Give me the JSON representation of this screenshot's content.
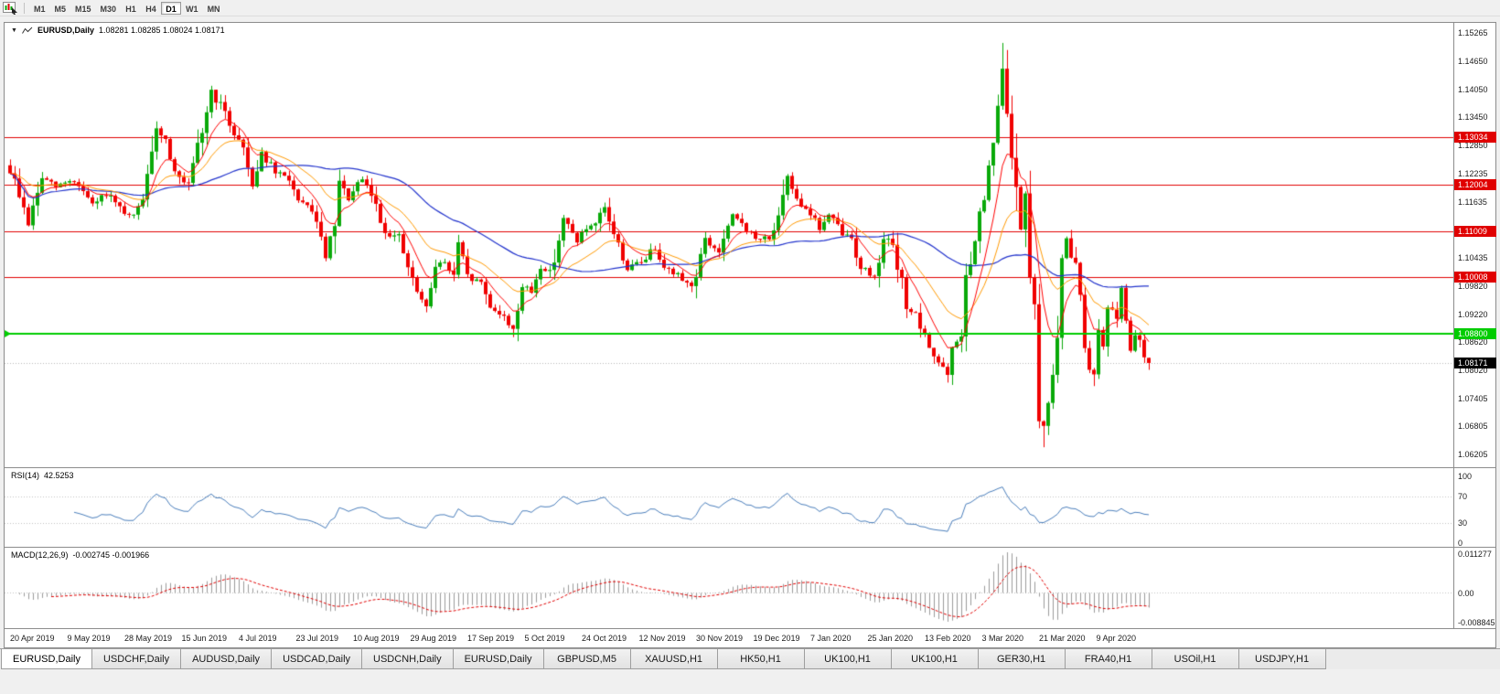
{
  "toolbar": {
    "periods": [
      "M1",
      "M5",
      "M15",
      "M30",
      "H1",
      "H4",
      "D1",
      "W1",
      "MN"
    ],
    "active_period": "D1"
  },
  "chart": {
    "title": "EURUSD,Daily",
    "ohlc_text": "1.08281 1.08285 1.08024 1.08171",
    "price_ticks": [
      "1.15265",
      "1.14650",
      "1.14050",
      "1.13450",
      "1.12850",
      "1.12235",
      "1.11635",
      "1.11035",
      "1.10435",
      "1.09820",
      "1.09220",
      "1.08620",
      "1.08020",
      "1.07405",
      "1.06805",
      "1.06205"
    ],
    "resistance_color": "#e00000",
    "resistance_lines": [
      {
        "label": "1.13034",
        "price": 1.13034
      },
      {
        "label": "1.12004",
        "price": 1.12004
      },
      {
        "label": "1.11009",
        "price": 1.11009
      },
      {
        "label": "1.10008",
        "price": 1.10008
      }
    ],
    "support_line": {
      "label": "1.08800",
      "price": 1.088,
      "color": "#00cc00"
    },
    "bid_line": {
      "label": "1.08171",
      "price": 1.08171,
      "color": "#000000"
    },
    "date_labels": [
      "20 Apr 2019",
      "9 May 2019",
      "28 May 2019",
      "15 Jun 2019",
      "4 Jul 2019",
      "23 Jul 2019",
      "10 Aug 2019",
      "29 Aug 2019",
      "17 Sep 2019",
      "5 Oct 2019",
      "24 Oct 2019",
      "12 Nov 2019",
      "30 Nov 2019",
      "19 Dec 2019",
      "7 Jan 2020",
      "25 Jan 2020",
      "13 Feb 2020",
      "3 Mar 2020",
      "21 Mar 2020",
      "9 Apr 2020"
    ]
  },
  "rsi": {
    "label": "RSI(14)",
    "value": "42.5253",
    "axis": [
      "100",
      "70",
      "30",
      "0"
    ],
    "levels": [
      70,
      30
    ],
    "line_color": "#4a7ebb"
  },
  "macd": {
    "label": "MACD(12,26,9)",
    "values": "-0.002745 -0.001966",
    "axis_top": "0.011277",
    "axis_zero": "0.00",
    "axis_bottom": "-0.008845",
    "histogram_color": "#9b9b9b",
    "signal_color": "#e00000"
  },
  "tabbar": {
    "tabs": [
      "EURUSD,Daily",
      "USDCHF,Daily",
      "AUDUSD,Daily",
      "USDCAD,Daily",
      "USDCNH,Daily",
      "EURUSD,Daily",
      "GBPUSD,M5",
      "XAUUSD,H1",
      "HK50,H1",
      "UK100,H1",
      "UK100,H1",
      "GER30,H1",
      "FRA40,H1",
      "USOil,H1",
      "USDJPY,H1"
    ],
    "active_index": 0
  },
  "chart_data": {
    "type": "candlestick",
    "symbol": "EURUSD",
    "timeframe": "Daily",
    "bar_count": 250,
    "price_max": 1.15481,
    "price_min": 1.0593,
    "noise_seed": 9,
    "up_color": "#09a909",
    "down_color": "#f00000",
    "ma_fast": {
      "period": 8,
      "color": "#ff0000"
    },
    "ma_mid": {
      "period": 20,
      "color": "#ff9900"
    },
    "ma_slow": {
      "period": 45,
      "color": "#2233cc"
    },
    "last_bar_ohlc": [
      1.08281,
      1.08285,
      1.08024,
      1.08171
    ],
    "rsi_value": 42.5253,
    "macd_main": -0.002745,
    "macd_signal": -0.001966,
    "close_waypoints": [
      [
        0,
        1.123
      ],
      [
        2,
        1.118
      ],
      [
        4,
        1.1115
      ],
      [
        7,
        1.1215
      ],
      [
        10,
        1.1195
      ],
      [
        13,
        1.121
      ],
      [
        15,
        1.12
      ],
      [
        18,
        1.1155
      ],
      [
        21,
        1.118
      ],
      [
        25,
        1.1135
      ],
      [
        27,
        1.113
      ],
      [
        29,
        1.1175
      ],
      [
        31,
        1.125
      ],
      [
        32,
        1.133
      ],
      [
        34,
        1.1295
      ],
      [
        37,
        1.121
      ],
      [
        39,
        1.1195
      ],
      [
        41,
        1.1275
      ],
      [
        44,
        1.14
      ],
      [
        46,
        1.137
      ],
      [
        48,
        1.133
      ],
      [
        51,
        1.128
      ],
      [
        53,
        1.12
      ],
      [
        55,
        1.127
      ],
      [
        58,
        1.1225
      ],
      [
        61,
        1.1215
      ],
      [
        63,
        1.116
      ],
      [
        66,
        1.115
      ],
      [
        68,
        1.1075
      ],
      [
        69,
        1.1045
      ],
      [
        71,
        1.1105
      ],
      [
        72,
        1.12
      ],
      [
        74,
        1.117
      ],
      [
        77,
        1.121
      ],
      [
        79,
        1.118
      ],
      [
        82,
        1.11
      ],
      [
        85,
        1.1085
      ],
      [
        88,
        1.099
      ],
      [
        91,
        1.093
      ],
      [
        93,
        1.1035
      ],
      [
        95,
        1.103
      ],
      [
        97,
        1.1005
      ],
      [
        98,
        1.107
      ],
      [
        100,
        1.1
      ],
      [
        103,
        1.099
      ],
      [
        105,
        1.094
      ],
      [
        107,
        1.0925
      ],
      [
        109,
        1.09
      ],
      [
        110,
        1.0895
      ],
      [
        112,
        1.098
      ],
      [
        114,
        1.097
      ],
      [
        116,
        1.1025
      ],
      [
        118,
        1.101
      ],
      [
        121,
        1.1125
      ],
      [
        124,
        1.108
      ],
      [
        126,
        1.1105
      ],
      [
        128,
        1.111
      ],
      [
        130,
        1.115
      ],
      [
        133,
        1.107
      ],
      [
        135,
        1.102
      ],
      [
        138,
        1.1035
      ],
      [
        141,
        1.1065
      ],
      [
        144,
        1.1015
      ],
      [
        147,
        1.1
      ],
      [
        149,
        1.098
      ],
      [
        152,
        1.108
      ],
      [
        155,
        1.1055
      ],
      [
        158,
        1.113
      ],
      [
        160,
        1.112
      ],
      [
        163,
        1.108
      ],
      [
        166,
        1.109
      ],
      [
        168,
        1.112
      ],
      [
        170,
        1.1212
      ],
      [
        173,
        1.116
      ],
      [
        175,
        1.114
      ],
      [
        177,
        1.1105
      ],
      [
        179,
        1.1135
      ],
      [
        182,
        1.1095
      ],
      [
        184,
        1.1085
      ],
      [
        186,
        1.1025
      ],
      [
        189,
        1.1
      ],
      [
        191,
        1.1093
      ],
      [
        193,
        1.106
      ],
      [
        196,
        1.0945
      ],
      [
        198,
        1.0915
      ],
      [
        200,
        1.087
      ],
      [
        202,
        1.0835
      ],
      [
        205,
        1.079
      ],
      [
        206,
        1.0845
      ],
      [
        208,
        1.088
      ],
      [
        209,
        1.1
      ],
      [
        210,
        1.1026
      ],
      [
        212,
        1.1135
      ],
      [
        213,
        1.117
      ],
      [
        214,
        1.1235
      ],
      [
        215,
        1.1285
      ],
      [
        217,
        1.145
      ],
      [
        218,
        1.134
      ],
      [
        219,
        1.127
      ],
      [
        220,
        1.1184
      ],
      [
        221,
        1.1105
      ],
      [
        222,
        1.118
      ],
      [
        223,
        1.0995
      ],
      [
        224,
        1.0935
      ],
      [
        225,
        1.069
      ],
      [
        226,
        1.0685
      ],
      [
        227,
        1.0725
      ],
      [
        228,
        1.079
      ],
      [
        229,
        1.088
      ],
      [
        230,
        1.103
      ],
      [
        231,
        1.1085
      ],
      [
        232,
        1.1048
      ],
      [
        233,
        1.1033
      ],
      [
        234,
        1.0965
      ],
      [
        235,
        1.0857
      ],
      [
        236,
        1.0808
      ],
      [
        237,
        1.0791
      ],
      [
        238,
        1.089
      ],
      [
        239,
        1.0857
      ],
      [
        240,
        1.093
      ],
      [
        241,
        1.0935
      ],
      [
        242,
        1.0912
      ],
      [
        243,
        1.098
      ],
      [
        244,
        1.0914
      ],
      [
        245,
        1.0839
      ],
      [
        246,
        1.0875
      ],
      [
        247,
        1.0865
      ],
      [
        248,
        1.083
      ],
      [
        249,
        1.08171
      ]
    ],
    "wick_pins": [
      {
        "index": 44,
        "high": 1.1412
      },
      {
        "index": 91,
        "low": 1.0926
      },
      {
        "index": 110,
        "low": 1.0879
      },
      {
        "index": 217,
        "high": 1.1505
      },
      {
        "index": 226,
        "low": 1.0636
      }
    ]
  }
}
